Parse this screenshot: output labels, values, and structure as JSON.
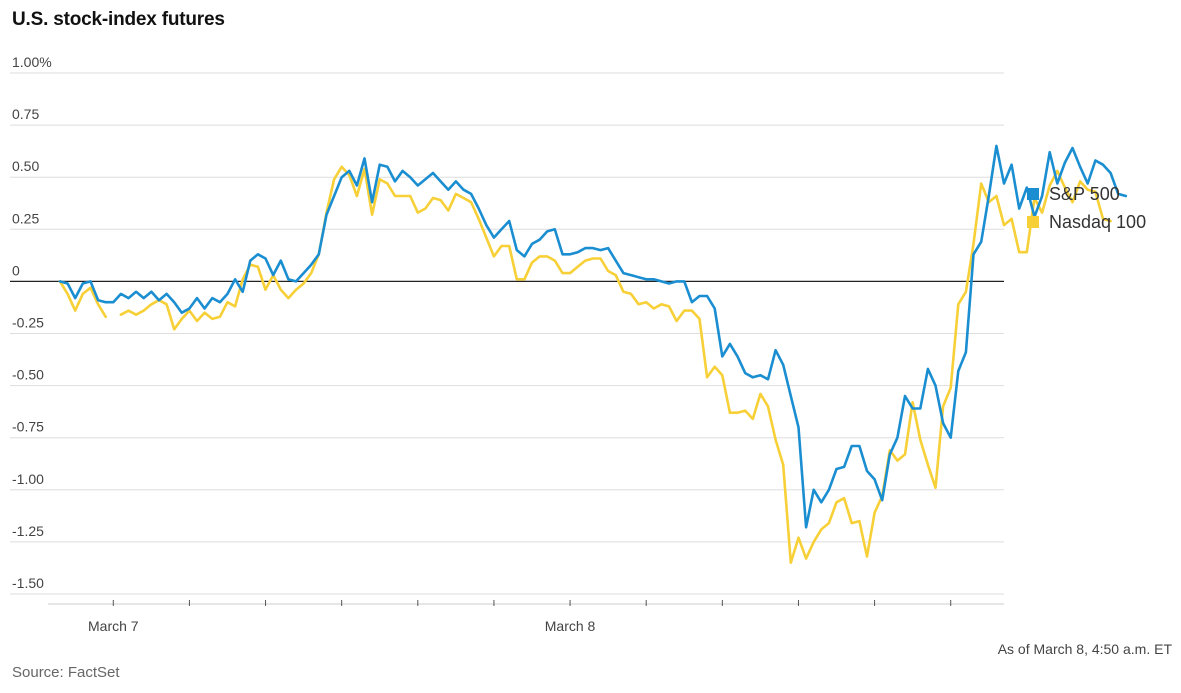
{
  "title": "U.S. stock-index futures",
  "source": "Source: FactSet",
  "as_of": "As of March 8, 4:50 a.m. ET",
  "chart_data": {
    "type": "line",
    "title": "U.S. stock-index futures",
    "ylim": [
      -1.5,
      1.0
    ],
    "yticks": [
      1.0,
      0.75,
      0.5,
      0.25,
      0,
      -0.25,
      -0.5,
      -0.75,
      -1.0,
      -1.25,
      -1.5
    ],
    "ytick_labels": [
      "1.00%",
      "0.75",
      "0.50",
      "0.25",
      "0",
      "-0.25",
      "-0.50",
      "-0.75",
      "-1.00",
      "-1.25",
      "-1.50"
    ],
    "xlim": [
      0,
      124
    ],
    "xticks": [
      7,
      17,
      27,
      37,
      47,
      57,
      67,
      77,
      87,
      97,
      107,
      117
    ],
    "xtick_labels": [
      {
        "at": 7,
        "label": "March 7"
      },
      {
        "at": 67,
        "label": "March 8"
      }
    ],
    "grid": true,
    "legend": "right",
    "series": [
      {
        "name": "S&P 500",
        "color": "#1a8ed1",
        "values": [
          0.0,
          -0.01,
          -0.08,
          -0.01,
          0.0,
          -0.09,
          -0.1,
          -0.1,
          -0.06,
          -0.08,
          -0.05,
          -0.08,
          -0.05,
          -0.09,
          -0.06,
          -0.1,
          -0.15,
          -0.13,
          -0.08,
          -0.13,
          -0.08,
          -0.1,
          -0.06,
          0.01,
          -0.05,
          0.1,
          0.13,
          0.11,
          0.03,
          0.1,
          0.01,
          0.0,
          0.04,
          0.08,
          0.13,
          0.32,
          0.41,
          0.5,
          0.53,
          0.46,
          0.59,
          0.38,
          0.56,
          0.55,
          0.48,
          0.53,
          0.5,
          0.46,
          0.49,
          0.52,
          0.48,
          0.44,
          0.48,
          0.44,
          0.42,
          0.35,
          0.27,
          0.21,
          0.25,
          0.29,
          0.15,
          0.12,
          0.18,
          0.2,
          0.24,
          0.25,
          0.13,
          0.13,
          0.14,
          0.16,
          0.16,
          0.15,
          0.16,
          0.1,
          0.04,
          0.03,
          0.02,
          0.01,
          0.01,
          0.0,
          -0.01,
          0.0,
          0.0,
          -0.1,
          -0.07,
          -0.07,
          -0.13,
          -0.36,
          -0.3,
          -0.36,
          -0.44,
          -0.46,
          -0.45,
          -0.47,
          -0.33,
          -0.4,
          -0.55,
          -0.7,
          -1.18,
          -1.0,
          -1.06,
          -1.0,
          -0.9,
          -0.89,
          -0.79,
          -0.79,
          -0.91,
          -0.95,
          -1.05,
          -0.83,
          -0.75,
          -0.55,
          -0.61,
          -0.61,
          -0.42,
          -0.5,
          -0.68,
          -0.75,
          -0.43,
          -0.34,
          0.13,
          0.19,
          0.41,
          0.65,
          0.47,
          0.56,
          0.35,
          0.45,
          0.31,
          0.41,
          0.62,
          0.47,
          0.57,
          0.64,
          0.55,
          0.47,
          0.58,
          0.56,
          0.52,
          0.42,
          0.41
        ]
      },
      {
        "name": "Nasdaq 100",
        "color": "#f7d038",
        "values": [
          0.0,
          -0.06,
          -0.14,
          -0.06,
          -0.03,
          -0.11,
          -0.17,
          null,
          -0.16,
          -0.14,
          -0.16,
          -0.14,
          -0.11,
          -0.09,
          -0.11,
          -0.23,
          -0.18,
          -0.14,
          -0.19,
          -0.15,
          -0.18,
          -0.17,
          -0.1,
          -0.12,
          0.01,
          0.08,
          0.07,
          -0.04,
          0.03,
          -0.04,
          -0.08,
          -0.04,
          -0.01,
          0.04,
          0.13,
          0.33,
          0.49,
          0.55,
          0.51,
          0.41,
          0.54,
          0.32,
          0.49,
          0.47,
          0.41,
          0.41,
          0.41,
          0.33,
          0.35,
          0.4,
          0.39,
          0.34,
          0.42,
          0.4,
          0.38,
          0.3,
          0.21,
          0.12,
          0.17,
          0.17,
          0.01,
          0.01,
          0.09,
          0.12,
          0.12,
          0.1,
          0.04,
          0.04,
          0.07,
          0.1,
          0.11,
          0.11,
          0.05,
          0.03,
          -0.05,
          -0.06,
          -0.11,
          -0.1,
          -0.13,
          -0.11,
          -0.12,
          -0.19,
          -0.14,
          -0.14,
          -0.18,
          -0.46,
          -0.41,
          -0.45,
          -0.63,
          -0.63,
          -0.62,
          -0.66,
          -0.54,
          -0.6,
          -0.76,
          -0.88,
          -1.35,
          -1.23,
          -1.33,
          -1.25,
          -1.19,
          -1.16,
          -1.06,
          -1.04,
          -1.16,
          -1.15,
          -1.32,
          -1.11,
          -1.03,
          -0.81,
          -0.86,
          -0.83,
          -0.58,
          -0.76,
          -0.88,
          -0.99,
          -0.6,
          -0.51,
          -0.11,
          -0.05,
          0.18,
          0.47,
          0.38,
          0.41,
          0.27,
          0.3,
          0.14,
          0.14,
          0.4,
          0.33,
          0.46,
          0.53,
          0.45,
          0.38,
          0.48,
          0.44,
          0.43,
          0.3,
          0.29
        ]
      }
    ]
  }
}
